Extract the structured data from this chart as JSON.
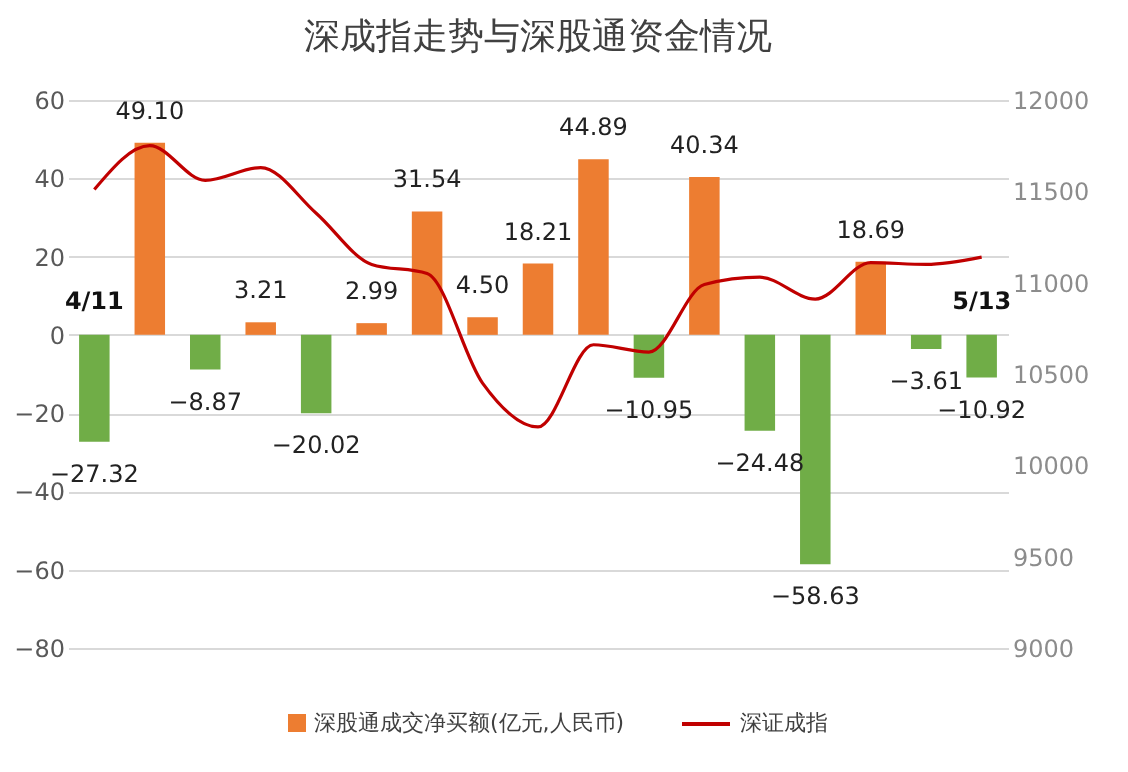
{
  "chart_data": {
    "type": "bar",
    "title": "深成指走势与深股通资金情况",
    "categories": [
      "4/11",
      null,
      null,
      null,
      null,
      null,
      null,
      null,
      null,
      null,
      null,
      null,
      null,
      null,
      null,
      null,
      "5/13"
    ],
    "series": [
      {
        "name": "深股通成交净买额(亿元,人民币)",
        "color": "#ed7d31",
        "colors": [
          "#70ad47",
          "#ed7d31",
          "#70ad47",
          "#ed7d31",
          "#70ad47",
          "#ed7d31",
          "#ed7d31",
          "#ed7d31",
          "#ed7d31",
          "#ed7d31",
          "#70ad47",
          "#ed7d31",
          "#70ad47",
          "#70ad47",
          "#ed7d31",
          "#70ad47",
          "#70ad47"
        ],
        "values": [
          -27.32,
          49.1,
          -8.87,
          3.21,
          -20.02,
          2.99,
          31.54,
          4.5,
          18.21,
          44.89,
          -10.95,
          40.34,
          -24.48,
          -58.63,
          18.69,
          -3.61,
          -10.92
        ],
        "value_labels": [
          "−27.32",
          "49.10",
          "−8.87",
          "3.21",
          "−20.02",
          "2.99",
          "31.54",
          "4.50",
          "18.21",
          "44.89",
          "−10.95",
          "40.34",
          "−24.48",
          "−58.63",
          "18.69",
          "−3.61",
          "−10.92"
        ]
      },
      {
        "name": "深证成指",
        "type": "line",
        "axis": "y2",
        "color": "#c00000",
        "values": [
          11510,
          11750,
          11560,
          11630,
          11380,
          11100,
          11050,
          10450,
          10210,
          10660,
          10620,
          10990,
          11030,
          10910,
          11110,
          11100,
          11140
        ]
      }
    ],
    "ylim": [
      -80,
      60
    ],
    "yticks": [
      -80,
      -60,
      -40,
      -20,
      0,
      20,
      40,
      60
    ],
    "y2lim": [
      9000,
      12000
    ],
    "y2ticks": [
      9000,
      9500,
      10000,
      10500,
      11000,
      11500,
      12000
    ],
    "grid": "y",
    "legend": "bottom",
    "tick_labels": "y"
  }
}
